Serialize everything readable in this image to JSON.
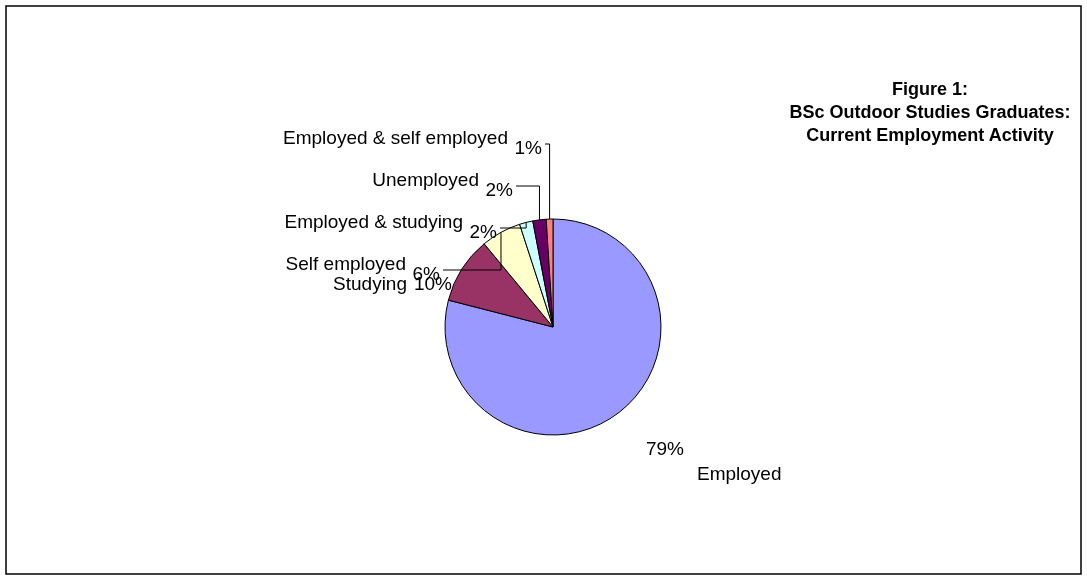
{
  "chart_data": {
    "type": "pie",
    "title": "Figure 1:\nBSc Outdoor Studies Graduates:\nCurrent Employment Activity",
    "categories": [
      "Employed",
      "Studying",
      "Self employed",
      "Employed & studying",
      "Unemployed",
      "Employed & self employed"
    ],
    "values": [
      79,
      10,
      6,
      2,
      2,
      1
    ],
    "colors": [
      "#9999ff",
      "#993366",
      "#ffffcc",
      "#ccffff",
      "#660066",
      "#ff8080"
    ],
    "value_labels": [
      "79%",
      "10%",
      "6%",
      "2%",
      "2%",
      "1%"
    ]
  }
}
